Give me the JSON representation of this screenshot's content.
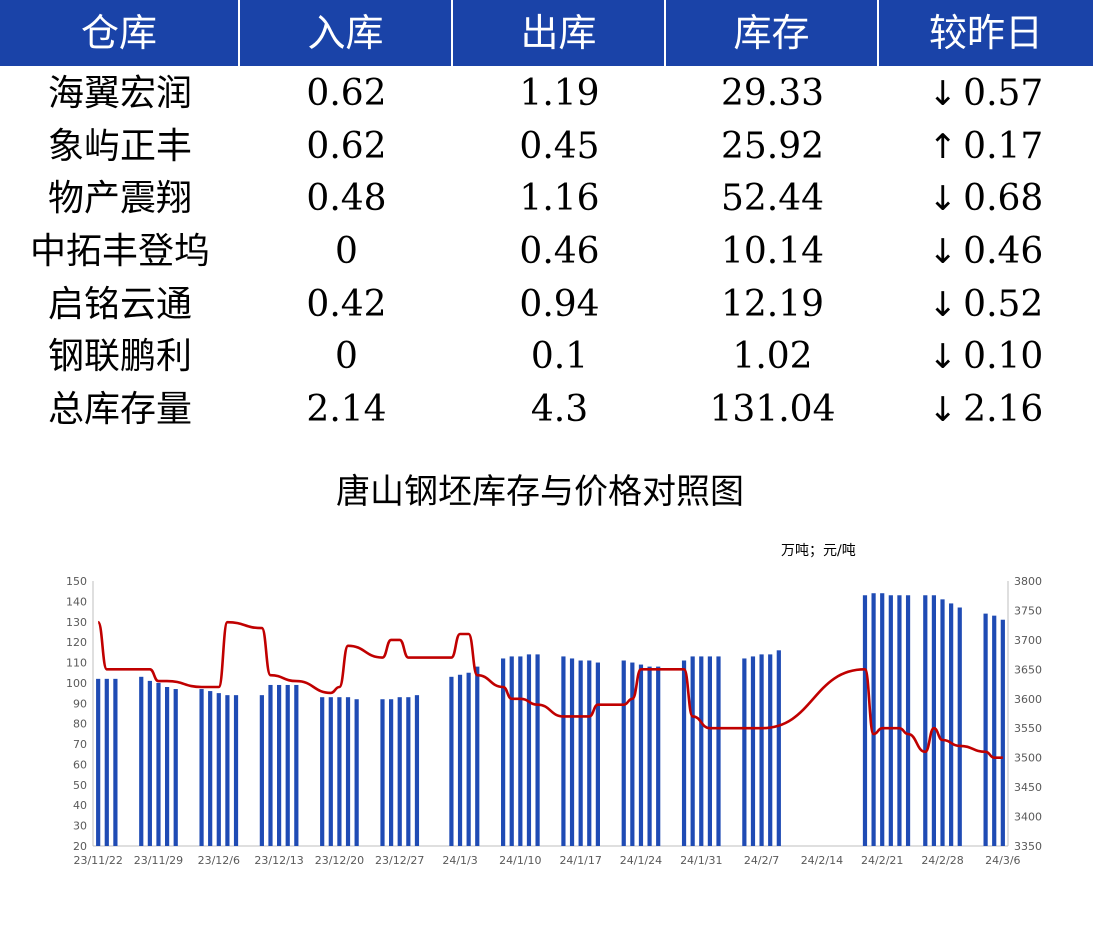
{
  "table": {
    "headers": [
      "仓库",
      "入库",
      "出库",
      "库存",
      "较昨日"
    ],
    "rows": [
      {
        "name": "海翼宏润",
        "in": "0.62",
        "out": "1.19",
        "stock": "29.33",
        "dir": "down",
        "arrow": "↓",
        "change": "0.57"
      },
      {
        "name": "象屿正丰",
        "in": "0.62",
        "out": "0.45",
        "stock": "25.92",
        "dir": "up",
        "arrow": "↑",
        "change": "0.17"
      },
      {
        "name": "物产震翔",
        "in": "0.48",
        "out": "1.16",
        "stock": "52.44",
        "dir": "down",
        "arrow": "↓",
        "change": "0.68"
      },
      {
        "name": "中拓丰登坞",
        "in": "0",
        "out": "0.46",
        "stock": "10.14",
        "dir": "down",
        "arrow": "↓",
        "change": "0.46"
      },
      {
        "name": "启铭云通",
        "in": "0.42",
        "out": "0.94",
        "stock": "12.19",
        "dir": "down",
        "arrow": "↓",
        "change": "0.52"
      },
      {
        "name": "钢联鹏利",
        "in": "0",
        "out": "0.1",
        "stock": "1.02",
        "dir": "down",
        "arrow": "↓",
        "change": "0.10"
      },
      {
        "name": "总库存量",
        "in": "2.14",
        "out": "4.3",
        "stock": "131.04",
        "dir": "down",
        "arrow": "↓",
        "change": "2.16"
      }
    ],
    "colors": {
      "header_bg": "#1a43a8",
      "up": "#e60012",
      "down": "#00a651"
    }
  },
  "chart_data": {
    "type": "bar",
    "title": "唐山钢坯库存与价格对照图",
    "units": "万吨；元/吨",
    "x_tick_labels": [
      "23/11/22",
      "23/11/29",
      "23/12/6",
      "23/12/13",
      "23/12/20",
      "23/12/27",
      "24/1/3",
      "24/1/10",
      "24/1/17",
      "24/1/24",
      "24/1/31",
      "24/2/7",
      "24/2/14",
      "24/2/21",
      "24/2/28",
      "24/3/6"
    ],
    "x_range": [
      "2023-11-22",
      "2024-03-06"
    ],
    "y_left": {
      "min": 20,
      "max": 150,
      "step": 10
    },
    "y_right": {
      "min": 3350,
      "max": 3800,
      "step": 50
    },
    "bar_color": "#1f4bb4",
    "line_color": "#c00000",
    "series": [
      {
        "axis": "left",
        "kind": "bar",
        "points": [
          [
            "2023-11-22",
            102
          ],
          [
            "2023-11-23",
            102
          ],
          [
            "2023-11-24",
            102
          ],
          [
            "2023-11-27",
            103
          ],
          [
            "2023-11-28",
            101
          ],
          [
            "2023-11-29",
            100
          ],
          [
            "2023-11-30",
            98
          ],
          [
            "2023-12-01",
            97
          ],
          [
            "2023-12-04",
            97
          ],
          [
            "2023-12-05",
            96
          ],
          [
            "2023-12-06",
            95
          ],
          [
            "2023-12-07",
            94
          ],
          [
            "2023-12-08",
            94
          ],
          [
            "2023-12-11",
            94
          ],
          [
            "2023-12-12",
            99
          ],
          [
            "2023-12-13",
            99
          ],
          [
            "2023-12-14",
            99
          ],
          [
            "2023-12-15",
            99
          ],
          [
            "2023-12-18",
            93
          ],
          [
            "2023-12-19",
            93
          ],
          [
            "2023-12-20",
            93
          ],
          [
            "2023-12-21",
            93
          ],
          [
            "2023-12-22",
            92
          ],
          [
            "2023-12-25",
            92
          ],
          [
            "2023-12-26",
            92
          ],
          [
            "2023-12-27",
            93
          ],
          [
            "2023-12-28",
            93
          ],
          [
            "2023-12-29",
            94
          ],
          [
            "2024-01-02",
            103
          ],
          [
            "2024-01-03",
            104
          ],
          [
            "2024-01-04",
            105
          ],
          [
            "2024-01-05",
            108
          ],
          [
            "2024-01-08",
            112
          ],
          [
            "2024-01-09",
            113
          ],
          [
            "2024-01-10",
            113
          ],
          [
            "2024-01-11",
            114
          ],
          [
            "2024-01-12",
            114
          ],
          [
            "2024-01-15",
            113
          ],
          [
            "2024-01-16",
            112
          ],
          [
            "2024-01-17",
            111
          ],
          [
            "2024-01-18",
            111
          ],
          [
            "2024-01-19",
            110
          ],
          [
            "2024-01-22",
            111
          ],
          [
            "2024-01-23",
            110
          ],
          [
            "2024-01-24",
            109
          ],
          [
            "2024-01-25",
            108
          ],
          [
            "2024-01-26",
            108
          ],
          [
            "2024-01-29",
            111
          ],
          [
            "2024-01-30",
            113
          ],
          [
            "2024-01-31",
            113
          ],
          [
            "2024-02-01",
            113
          ],
          [
            "2024-02-02",
            113
          ],
          [
            "2024-02-05",
            112
          ],
          [
            "2024-02-06",
            113
          ],
          [
            "2024-02-07",
            114
          ],
          [
            "2024-02-08",
            114
          ],
          [
            "2024-02-09",
            116
          ],
          [
            "2024-02-19",
            143
          ],
          [
            "2024-02-20",
            144
          ],
          [
            "2024-02-21",
            144
          ],
          [
            "2024-02-22",
            143
          ],
          [
            "2024-02-23",
            143
          ],
          [
            "2024-02-24",
            143
          ],
          [
            "2024-02-26",
            143
          ],
          [
            "2024-02-27",
            143
          ],
          [
            "2024-02-28",
            141
          ],
          [
            "2024-02-29",
            139
          ],
          [
            "2024-03-01",
            137
          ],
          [
            "2024-03-04",
            134
          ],
          [
            "2024-03-05",
            133
          ],
          [
            "2024-03-06",
            131
          ]
        ]
      },
      {
        "axis": "right",
        "kind": "line",
        "points": [
          [
            "2023-11-22",
            3730
          ],
          [
            "2023-11-23",
            3650
          ],
          [
            "2023-11-28",
            3650
          ],
          [
            "2023-11-29",
            3630
          ],
          [
            "2023-11-30",
            3630
          ],
          [
            "2023-12-04",
            3620
          ],
          [
            "2023-12-06",
            3620
          ],
          [
            "2023-12-07",
            3730
          ],
          [
            "2023-12-11",
            3720
          ],
          [
            "2023-12-12",
            3640
          ],
          [
            "2023-12-15",
            3630
          ],
          [
            "2023-12-19",
            3610
          ],
          [
            "2023-12-20",
            3620
          ],
          [
            "2023-12-21",
            3690
          ],
          [
            "2023-12-25",
            3670
          ],
          [
            "2023-12-26",
            3700
          ],
          [
            "2023-12-27",
            3700
          ],
          [
            "2023-12-28",
            3670
          ],
          [
            "2024-01-02",
            3670
          ],
          [
            "2024-01-03",
            3710
          ],
          [
            "2024-01-04",
            3710
          ],
          [
            "2024-01-05",
            3640
          ],
          [
            "2024-01-08",
            3620
          ],
          [
            "2024-01-09",
            3600
          ],
          [
            "2024-01-10",
            3600
          ],
          [
            "2024-01-12",
            3590
          ],
          [
            "2024-01-15",
            3570
          ],
          [
            "2024-01-17",
            3570
          ],
          [
            "2024-01-18",
            3570
          ],
          [
            "2024-01-19",
            3590
          ],
          [
            "2024-01-22",
            3590
          ],
          [
            "2024-01-23",
            3600
          ],
          [
            "2024-01-24",
            3650
          ],
          [
            "2024-01-29",
            3650
          ],
          [
            "2024-01-30",
            3570
          ],
          [
            "2024-02-01",
            3550
          ],
          [
            "2024-02-07",
            3550
          ],
          [
            "2024-02-19",
            3650
          ],
          [
            "2024-02-20",
            3540
          ],
          [
            "2024-02-21",
            3550
          ],
          [
            "2024-02-23",
            3550
          ],
          [
            "2024-02-24",
            3540
          ],
          [
            "2024-02-26",
            3510
          ],
          [
            "2024-02-27",
            3550
          ],
          [
            "2024-02-28",
            3530
          ],
          [
            "2024-03-01",
            3520
          ],
          [
            "2024-03-04",
            3510
          ],
          [
            "2024-03-05",
            3500
          ],
          [
            "2024-03-06",
            3500
          ]
        ]
      }
    ]
  }
}
